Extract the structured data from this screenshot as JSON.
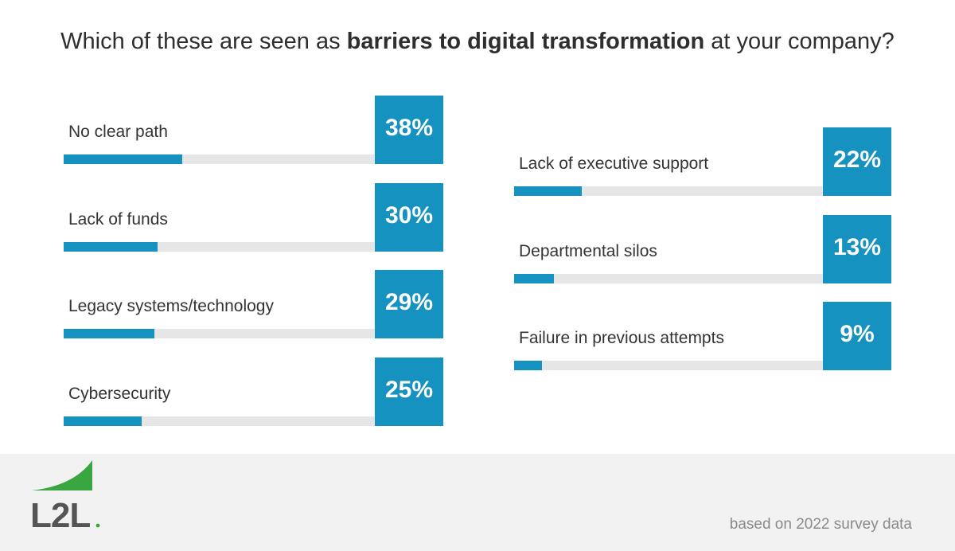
{
  "title": {
    "prefix": "Which of these are seen as ",
    "bold": "barriers to digital transformation",
    "suffix": " at your company?"
  },
  "colors": {
    "accent": "#1592c0",
    "track": "#e6e6e6",
    "logo_green": "#3aa642",
    "logo_gray": "#555555"
  },
  "chart_data": {
    "type": "bar",
    "title": "Which of these are seen as barriers to digital transformation at your company?",
    "unit": "%",
    "categories": [
      "No clear path",
      "Lack of funds",
      "Legacy systems/technology",
      "Cybersecurity",
      "Lack of executive support",
      "Departmental silos",
      "Failure in previous attempts"
    ],
    "values": [
      38,
      30,
      29,
      25,
      22,
      13,
      9
    ],
    "value_labels": [
      "38%",
      "30%",
      "29%",
      "25%",
      "22%",
      "13%",
      "9%"
    ],
    "ylim": [
      0,
      100
    ]
  },
  "logo": {
    "text": "L2L"
  },
  "footer": {
    "note": "based on 2022 survey data"
  }
}
